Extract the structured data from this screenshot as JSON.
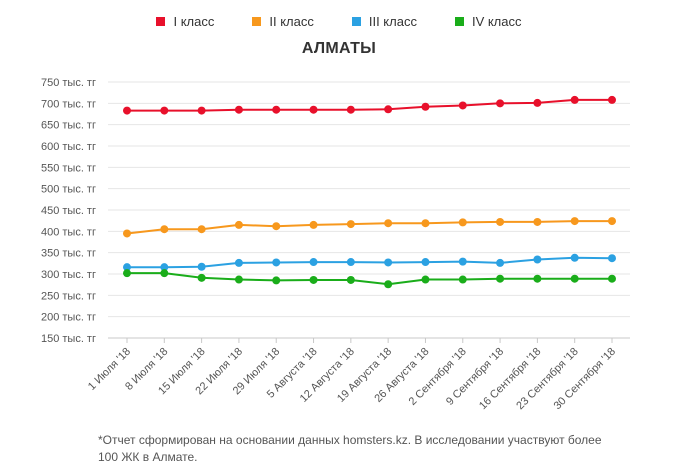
{
  "chart_data": {
    "type": "line",
    "title": "АЛМАТЫ",
    "xlabel": "",
    "ylabel": "",
    "ylim": [
      150,
      750
    ],
    "y_ticks": [
      {
        "value": 750,
        "label": "750 тыс. тг"
      },
      {
        "value": 700,
        "label": "700 тыс. тг"
      },
      {
        "value": 650,
        "label": "650 тыс. тг"
      },
      {
        "value": 600,
        "label": "600 тыс. тг"
      },
      {
        "value": 550,
        "label": "550 тыс. тг"
      },
      {
        "value": 500,
        "label": "500 тыс. тг"
      },
      {
        "value": 450,
        "label": "450 тыс. тг"
      },
      {
        "value": 400,
        "label": "400 тыс. тг"
      },
      {
        "value": 350,
        "label": "350 тыс. тг"
      },
      {
        "value": 300,
        "label": "300 тыс. тг"
      },
      {
        "value": 250,
        "label": "250 тыс. тг"
      },
      {
        "value": 200,
        "label": "200 тыс. тг"
      },
      {
        "value": 150,
        "label": "150 тыс. тг"
      }
    ],
    "categories": [
      "1 Июля '18",
      "8 Июля '18",
      "15 Июля '18",
      "22 Июля '18",
      "29 Июля '18",
      "5 Августа '18",
      "12 Августа '18",
      "19 Августа '18",
      "26 Августа '18",
      "2 Сентября '18",
      "9 Сентября '18",
      "16 Сентября '18",
      "23 Сентября '18",
      "30 Сентября '18"
    ],
    "series": [
      {
        "name": "I класс",
        "color": "#e8102b",
        "values": [
          683,
          683,
          683,
          685,
          685,
          685,
          685,
          686,
          692,
          695,
          700,
          701,
          708,
          708
        ]
      },
      {
        "name": "II класс",
        "color": "#f7981d",
        "values": [
          395,
          405,
          405,
          415,
          412,
          415,
          417,
          419,
          419,
          421,
          422,
          422,
          424,
          424
        ]
      },
      {
        "name": "III класс",
        "color": "#2ba1e2",
        "values": [
          316,
          316,
          317,
          326,
          327,
          328,
          328,
          327,
          328,
          329,
          326,
          334,
          338,
          337
        ]
      },
      {
        "name": "IV класс",
        "color": "#1aad1a",
        "values": [
          302,
          302,
          291,
          287,
          285,
          286,
          286,
          276,
          287,
          287,
          289,
          289,
          289,
          289
        ]
      }
    ],
    "grid": true,
    "legend": "top-center"
  },
  "footnote": {
    "line1": "*Отчет сформирован на основании данных homsters.kz. В исследовании участвуют более",
    "line2": "100 ЖК в Алмате."
  }
}
